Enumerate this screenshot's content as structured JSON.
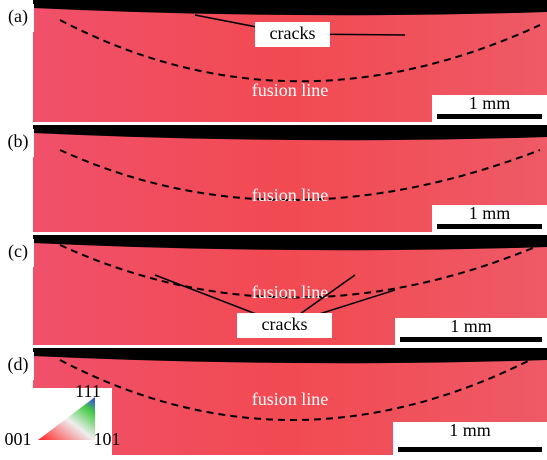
{
  "panels": [
    {
      "label": "(a)",
      "fusion_line": "fusion line",
      "scale_bar": "1 mm",
      "cracks": "cracks"
    },
    {
      "label": "(b)",
      "fusion_line": "fusion line",
      "scale_bar": "1 mm"
    },
    {
      "label": "(c)",
      "fusion_line": "fusion line",
      "scale_bar": "1 mm",
      "cracks": "cracks"
    },
    {
      "label": "(d)",
      "fusion_line": "fusion line",
      "scale_bar": "1 mm"
    }
  ],
  "legend": {
    "top": "111",
    "left": "001",
    "right": "101"
  }
}
